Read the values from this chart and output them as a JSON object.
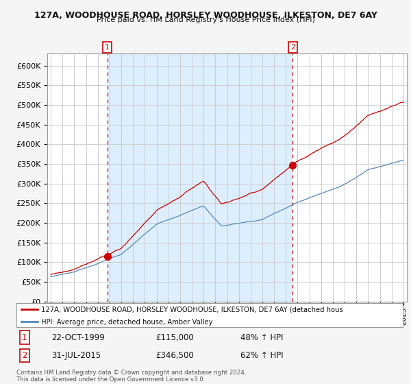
{
  "title1": "127A, WOODHOUSE ROAD, HORSLEY WOODHOUSE, ILKESTON, DE7 6AY",
  "title2": "Price paid vs. HM Land Registry's House Price Index (HPI)",
  "legend_line1": "127A, WOODHOUSE ROAD, HORSLEY WOODHOUSE, ILKESTON, DE7 6AY (detached hous",
  "legend_line2": "HPI: Average price, detached house, Amber Valley",
  "footnote": "Contains HM Land Registry data © Crown copyright and database right 2024.\nThis data is licensed under the Open Government Licence v3.0.",
  "point1_date": "22-OCT-1999",
  "point1_price": "£115,000",
  "point1_hpi": "48% ↑ HPI",
  "point1_x": 1999.8,
  "point1_y": 115000,
  "point2_date": "31-JUL-2015",
  "point2_price": "£346,500",
  "point2_hpi": "62% ↑ HPI",
  "point2_x": 2015.58,
  "point2_y": 346500,
  "ylim": [
    0,
    630000
  ],
  "xlim_start": 1994.7,
  "xlim_end": 2025.3,
  "red_color": "#cc0000",
  "blue_color": "#5588bb",
  "shade_color": "#ddeeff",
  "background_color": "#f5f5f5",
  "plot_bg_color": "#ffffff",
  "grid_color": "#cccccc"
}
